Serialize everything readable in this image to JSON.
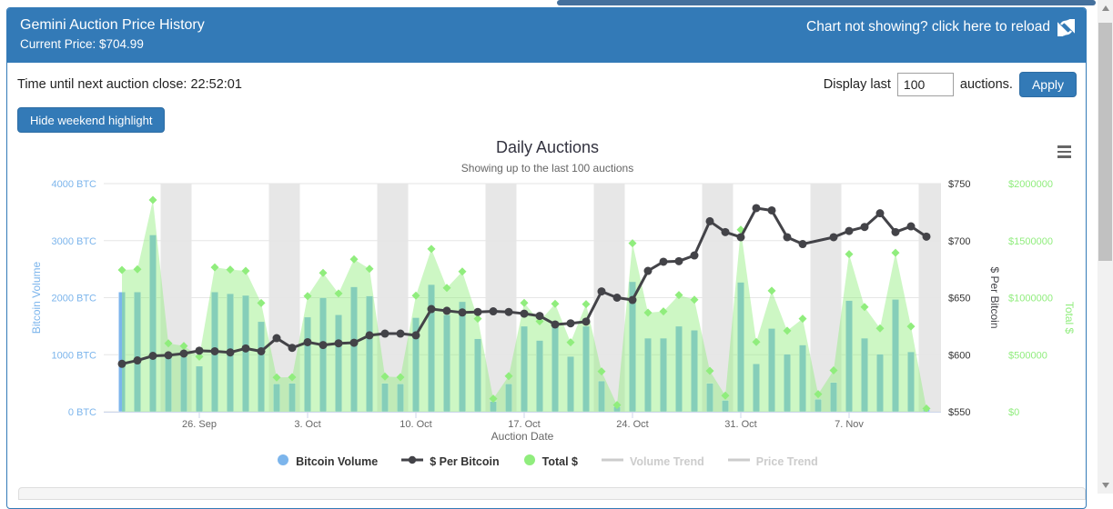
{
  "colors": {
    "accent": "#337ab7",
    "volume": "#7cb5ec",
    "price": "#434348",
    "total": "#90ed7d",
    "hidden_legend": "#cccccc"
  },
  "header": {
    "title": "Gemini Auction Price History",
    "current_price": "Current Price: $704.99",
    "reload_text": "Chart not showing? click here to reload"
  },
  "toolbar": {
    "countdown": "Time until next auction close: 22:52:01",
    "display_last_label": "Display last",
    "display_last_value": "100",
    "auctions_label": "auctions.",
    "apply_label": "Apply",
    "hide_weekend_label": "Hide weekend highlight"
  },
  "chart_data": {
    "type": "combo",
    "title": "Daily Auctions",
    "subtitle": "Showing up to the last 100 auctions",
    "x_axis": {
      "title": "Auction Date",
      "tick_labels": [
        "26. Sep",
        "3. Oct",
        "10. Oct",
        "17. Oct",
        "24. Oct",
        "31. Oct",
        "7. Nov"
      ],
      "tick_indices": [
        5,
        12,
        19,
        26,
        33,
        40,
        47
      ]
    },
    "y_axes": [
      {
        "title": "Bitcoin Volume",
        "color": "#7cb5ec",
        "ticks": [
          "0 BTC",
          "1000 BTC",
          "2000 BTC",
          "3000 BTC",
          "4000 BTC"
        ],
        "min": 0,
        "max": 4000
      },
      {
        "title": "$ Per Bitcoin",
        "color": "#434348",
        "ticks": [
          "$550",
          "$600",
          "$650",
          "$700",
          "$750"
        ],
        "min": 550,
        "max": 750
      },
      {
        "title": "Total $",
        "color": "#90ed7d",
        "ticks": [
          "$0",
          "$500000",
          "$1000000",
          "$1500000",
          "$2000000"
        ],
        "min": 0,
        "max": 2000000
      }
    ],
    "series": [
      {
        "name": "Bitcoin Volume",
        "type": "column",
        "color": "#7cb5ec",
        "icon": "circle",
        "hidden": false
      },
      {
        "name": "$ Per Bitcoin",
        "type": "line",
        "color": "#434348",
        "icon": "line-dot",
        "hidden": false
      },
      {
        "name": "Total $",
        "type": "area",
        "color": "#90ed7d",
        "icon": "circle",
        "hidden": false
      },
      {
        "name": "Volume Trend",
        "type": "line",
        "color": "#cccccc",
        "icon": "line",
        "hidden": true
      },
      {
        "name": "Price Trend",
        "type": "line",
        "color": "#cccccc",
        "icon": "line",
        "hidden": true
      }
    ],
    "points": [
      {
        "date": "21. Sep",
        "volume": 2100,
        "price": 592,
        "total": 1243200,
        "weekend": false
      },
      {
        "date": "22. Sep",
        "volume": 2100,
        "price": 595,
        "total": 1249500,
        "weekend": false
      },
      {
        "date": "23. Sep",
        "volume": 3100,
        "price": 599,
        "total": 1856900,
        "weekend": false
      },
      {
        "date": "24. Sep",
        "volume": 1000,
        "price": 599.5,
        "total": 599500,
        "weekend": true
      },
      {
        "date": "25. Sep",
        "volume": 960,
        "price": 601,
        "total": 576960,
        "weekend": true
      },
      {
        "date": "26. Sep",
        "volume": 800,
        "price": 603.5,
        "total": 482800,
        "weekend": false
      },
      {
        "date": "27. Sep",
        "volume": 2100,
        "price": 603,
        "total": 1266300,
        "weekend": false
      },
      {
        "date": "28. Sep",
        "volume": 2070,
        "price": 602,
        "total": 1246140,
        "weekend": false
      },
      {
        "date": "29. Sep",
        "volume": 2040,
        "price": 605.5,
        "total": 1235220,
        "weekend": false
      },
      {
        "date": "30. Sep",
        "volume": 1580,
        "price": 603,
        "total": 952740,
        "weekend": false
      },
      {
        "date": "1. Oct",
        "volume": 490,
        "price": 614.5,
        "total": 301105,
        "weekend": true
      },
      {
        "date": "2. Oct",
        "volume": 500,
        "price": 606,
        "total": 303000,
        "weekend": true
      },
      {
        "date": "3. Oct",
        "volume": 1660,
        "price": 611,
        "total": 1014260,
        "weekend": false
      },
      {
        "date": "4. Oct",
        "volume": 2000,
        "price": 608.5,
        "total": 1217000,
        "weekend": false
      },
      {
        "date": "5. Oct",
        "volume": 1700,
        "price": 610,
        "total": 1037000,
        "weekend": false
      },
      {
        "date": "6. Oct",
        "volume": 2190,
        "price": 610.5,
        "total": 1336995,
        "weekend": false
      },
      {
        "date": "7. Oct",
        "volume": 2030,
        "price": 617,
        "total": 1252510,
        "weekend": false
      },
      {
        "date": "8. Oct",
        "volume": 500,
        "price": 618.5,
        "total": 309250,
        "weekend": true
      },
      {
        "date": "9. Oct",
        "volume": 490,
        "price": 618.5,
        "total": 303065,
        "weekend": true
      },
      {
        "date": "10. Oct",
        "volume": 1650,
        "price": 617,
        "total": 1018050,
        "weekend": false
      },
      {
        "date": "11. Oct",
        "volume": 2230,
        "price": 640,
        "total": 1427200,
        "weekend": false
      },
      {
        "date": "12. Oct",
        "volume": 1700,
        "price": 638.5,
        "total": 1085450,
        "weekend": false
      },
      {
        "date": "13. Oct",
        "volume": 1930,
        "price": 637,
        "total": 1229410,
        "weekend": false
      },
      {
        "date": "14. Oct",
        "volume": 1280,
        "price": 637.5,
        "total": 816000,
        "weekend": false
      },
      {
        "date": "15. Oct",
        "volume": 180,
        "price": 638,
        "total": 114840,
        "weekend": true
      },
      {
        "date": "16. Oct",
        "volume": 490,
        "price": 637.5,
        "total": 312375,
        "weekend": true
      },
      {
        "date": "17. Oct",
        "volume": 1500,
        "price": 636,
        "total": 954000,
        "weekend": false
      },
      {
        "date": "18. Oct",
        "volume": 1250,
        "price": 634,
        "total": 792500,
        "weekend": false
      },
      {
        "date": "19. Oct",
        "volume": 1510,
        "price": 626.5,
        "total": 946015,
        "weekend": false
      },
      {
        "date": "20. Oct",
        "volume": 970,
        "price": 627.5,
        "total": 608675,
        "weekend": false
      },
      {
        "date": "21. Oct",
        "volume": 1500,
        "price": 629,
        "total": 943500,
        "weekend": false
      },
      {
        "date": "22. Oct",
        "volume": 540,
        "price": 655.5,
        "total": 353970,
        "weekend": true
      },
      {
        "date": "23. Oct",
        "volume": 90,
        "price": 650,
        "total": 58500,
        "weekend": true
      },
      {
        "date": "24. Oct",
        "volume": 2280,
        "price": 648,
        "total": 1477440,
        "weekend": false
      },
      {
        "date": "25. Oct",
        "volume": 1290,
        "price": 673.5,
        "total": 868815,
        "weekend": false
      },
      {
        "date": "26. Oct",
        "volume": 1290,
        "price": 681.5,
        "total": 879135,
        "weekend": false
      },
      {
        "date": "27. Oct",
        "volume": 1500,
        "price": 682,
        "total": 1023000,
        "weekend": false
      },
      {
        "date": "28. Oct",
        "volume": 1430,
        "price": 687,
        "total": 982410,
        "weekend": false
      },
      {
        "date": "29. Oct",
        "volume": 500,
        "price": 717,
        "total": 358500,
        "weekend": true
      },
      {
        "date": "30. Oct",
        "volume": 200,
        "price": 707.5,
        "total": 141500,
        "weekend": true
      },
      {
        "date": "31. Oct",
        "volume": 2270,
        "price": 703,
        "total": 1595810,
        "weekend": false
      },
      {
        "date": "1. Nov",
        "volume": 840,
        "price": 728.5,
        "total": 611940,
        "weekend": false
      },
      {
        "date": "2. Nov",
        "volume": 1460,
        "price": 726.5,
        "total": 1060690,
        "weekend": false
      },
      {
        "date": "3. Nov",
        "volume": 1010,
        "price": 703,
        "total": 710030,
        "weekend": false
      },
      {
        "date": "4. Nov",
        "volume": 1170,
        "price": 697,
        "total": 815490,
        "weekend": false
      },
      {
        "date": "5. Nov",
        "volume": 220,
        "price": null,
        "total": 154000,
        "weekend": true
      },
      {
        "date": "6. Nov",
        "volume": 515,
        "price": 703,
        "total": 362045,
        "weekend": true
      },
      {
        "date": "7. Nov",
        "volume": 1950,
        "price": 708.5,
        "total": 1381575,
        "weekend": false
      },
      {
        "date": "8. Nov",
        "volume": 1290,
        "price": 712,
        "total": 918480,
        "weekend": false
      },
      {
        "date": "9. Nov",
        "volume": 1010,
        "price": 724,
        "total": 731240,
        "weekend": false
      },
      {
        "date": "10. Nov",
        "volume": 1970,
        "price": 707.5,
        "total": 1393775,
        "weekend": false
      },
      {
        "date": "11. Nov",
        "volume": 1050,
        "price": 712.5,
        "total": 748125,
        "weekend": false
      },
      {
        "date": "12. Nov",
        "volume": 40,
        "price": 703.5,
        "total": 28140,
        "weekend": true
      }
    ]
  }
}
